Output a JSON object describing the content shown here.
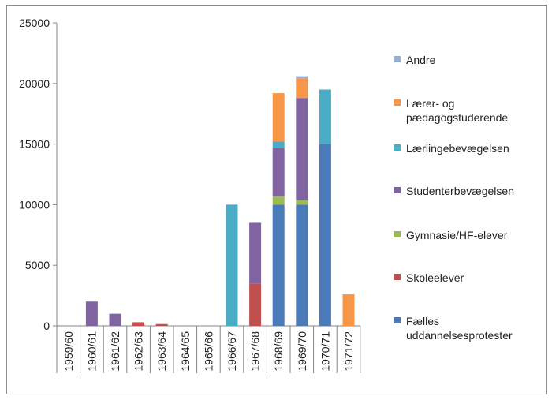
{
  "chart_data": {
    "type": "bar",
    "stacked": true,
    "categories": [
      "1959/60",
      "1960/61",
      "1961/62",
      "1962/63",
      "1963/64",
      "1964/65",
      "1965/66",
      "1966/67",
      "1967/68",
      "1968/69",
      "1969/70",
      "1970/71",
      "1971/72"
    ],
    "ylim": [
      0,
      25000
    ],
    "yticks": [
      0,
      5000,
      10000,
      15000,
      20000,
      25000
    ],
    "grid": false,
    "legend_position": "right",
    "series": [
      {
        "name": "Fælles uddannelsesprotester",
        "color": "#4a7ab7",
        "values": [
          0,
          0,
          0,
          0,
          0,
          0,
          0,
          0,
          0,
          10000,
          10000,
          15000,
          0
        ]
      },
      {
        "name": "Skoleelever",
        "color": "#c0504d",
        "values": [
          0,
          0,
          0,
          300,
          150,
          0,
          0,
          0,
          3500,
          0,
          0,
          0,
          0
        ]
      },
      {
        "name": "Gymnasie/HF-elever",
        "color": "#9bbb59",
        "values": [
          0,
          0,
          0,
          0,
          0,
          0,
          0,
          0,
          0,
          700,
          400,
          0,
          0
        ]
      },
      {
        "name": "Studenterbevægelsen",
        "color": "#8064a2",
        "values": [
          0,
          2000,
          1000,
          0,
          0,
          0,
          0,
          0,
          5000,
          4000,
          8400,
          0,
          0
        ]
      },
      {
        "name": "Lærlingebevægelsen",
        "color": "#4bacc6",
        "values": [
          0,
          0,
          0,
          0,
          0,
          0,
          0,
          10000,
          0,
          500,
          0,
          4500,
          0
        ]
      },
      {
        "name": "Lærer- og pædagogstuderende",
        "color": "#f79646",
        "values": [
          0,
          0,
          0,
          0,
          0,
          0,
          0,
          0,
          0,
          4000,
          1600,
          0,
          2600
        ]
      },
      {
        "name": "Andre",
        "color": "#94aed4",
        "values": [
          0,
          0,
          0,
          0,
          0,
          0,
          0,
          0,
          0,
          0,
          200,
          0,
          0
        ]
      }
    ],
    "legend": [
      {
        "label_lines": [
          "Andre"
        ],
        "series_index": 6
      },
      {
        "label_lines": [
          "Lærer- og",
          "pædagogstuderende"
        ],
        "series_index": 5
      },
      {
        "label_lines": [
          "Lærlingebevægelsen"
        ],
        "series_index": 4
      },
      {
        "label_lines": [
          "Studenterbevægelsen"
        ],
        "series_index": 3
      },
      {
        "label_lines": [
          "Gymnasie/HF-elever"
        ],
        "series_index": 2
      },
      {
        "label_lines": [
          "Skoleelever"
        ],
        "series_index": 1
      },
      {
        "label_lines": [
          "Fælles",
          "uddannelsesprotester"
        ],
        "series_index": 0
      }
    ]
  }
}
